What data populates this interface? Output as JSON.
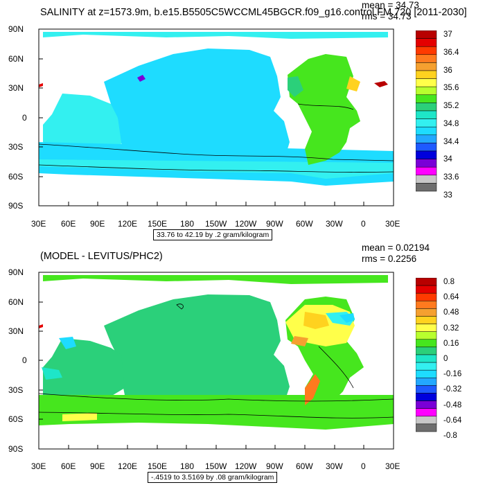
{
  "panel1": {
    "title": "SALINITY at z=1573.9m, b.e15.B5505C5WCCML45BGCR.f09_g16.control.FM.720 [2011-2030]",
    "mean": "mean = 34.73",
    "rms": "rms = 34.73",
    "contour_info": "33.76 to 42.19 by .2 gram/kilogram",
    "lat_labels": [
      "90N",
      "60N",
      "30N",
      "0",
      "30S",
      "60S",
      "90S"
    ],
    "lon_labels": [
      "30E",
      "60E",
      "90E",
      "120E",
      "150E",
      "180",
      "150W",
      "120W",
      "90W",
      "60W",
      "30W",
      "0",
      "30E"
    ],
    "colorbar": {
      "labels": [
        "37",
        "36.4",
        "36",
        "35.6",
        "35.2",
        "34.8",
        "34.4",
        "34",
        "33.6",
        "33"
      ],
      "colors": [
        "#b80000",
        "#e40000",
        "#ff3a00",
        "#ff7a1e",
        "#f5a030",
        "#ffd21f",
        "#ffff4a",
        "#b8ff2e",
        "#46e61e",
        "#2bd07a",
        "#1ee6c8",
        "#33f0f0",
        "#1edcff",
        "#23a8ff",
        "#1e5aff",
        "#0000dc",
        "#7a00d7",
        "#ff00ff",
        "#c8c8c8",
        "#6e6e6e"
      ]
    }
  },
  "panel2": {
    "title": "(MODEL - LEVITUS/PHC2)",
    "mean": "mean = 0.02194",
    "rms": "rms = 0.2256",
    "contour_info": "-.4519 to 3.5169 by .08 gram/kilogram",
    "lat_labels": [
      "90N",
      "60N",
      "30N",
      "0",
      "30S",
      "60S",
      "90S"
    ],
    "lon_labels": [
      "30E",
      "60E",
      "90E",
      "120E",
      "150E",
      "180",
      "150W",
      "120W",
      "90W",
      "60W",
      "30W",
      "0",
      "30E"
    ],
    "colorbar": {
      "labels": [
        "0.8",
        "0.64",
        "0.48",
        "0.32",
        "0.16",
        "0",
        "-0.16",
        "-0.32",
        "-0.48",
        "-0.64",
        "-0.8"
      ],
      "colors": [
        "#b80000",
        "#e40000",
        "#ff3a00",
        "#ff7a1e",
        "#f5a030",
        "#ffd21f",
        "#ffff4a",
        "#b8ff2e",
        "#46e61e",
        "#2bd07a",
        "#1ee6c8",
        "#33f0f0",
        "#1edcff",
        "#23a8ff",
        "#1e5aff",
        "#0000dc",
        "#7a00d7",
        "#ff00ff",
        "#c8c8c8",
        "#6e6e6e"
      ]
    }
  }
}
